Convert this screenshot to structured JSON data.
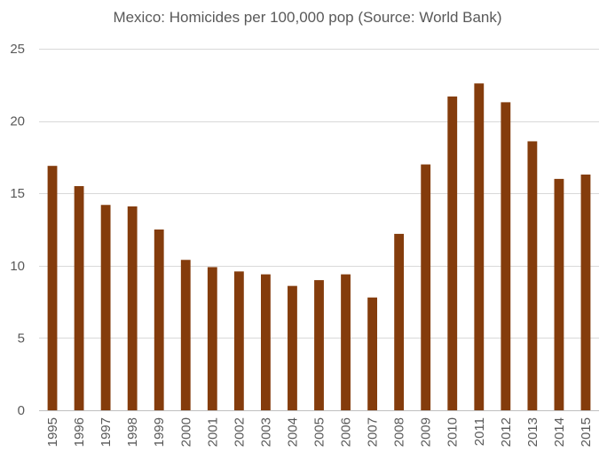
{
  "chart_data": {
    "type": "bar",
    "title": "Mexico: Homicides per 100,000 pop (Source: World Bank)",
    "xlabel": "",
    "ylabel": "",
    "categories": [
      "1995",
      "1996",
      "1997",
      "1998",
      "1999",
      "2000",
      "2001",
      "2002",
      "2003",
      "2004",
      "2005",
      "2006",
      "2007",
      "2008",
      "2009",
      "2010",
      "2011",
      "2012",
      "2013",
      "2014",
      "2015"
    ],
    "values": [
      16.9,
      15.5,
      14.2,
      14.1,
      12.5,
      10.4,
      9.9,
      9.6,
      9.4,
      8.6,
      9.0,
      9.4,
      7.8,
      12.2,
      17.0,
      21.7,
      22.6,
      21.3,
      18.6,
      16.0,
      16.3
    ],
    "ylim": [
      0,
      25
    ],
    "yticks": [
      "0",
      "5",
      "10",
      "15",
      "20",
      "25"
    ],
    "grid": true,
    "legend": "none",
    "bar_color": "#843C0C"
  }
}
